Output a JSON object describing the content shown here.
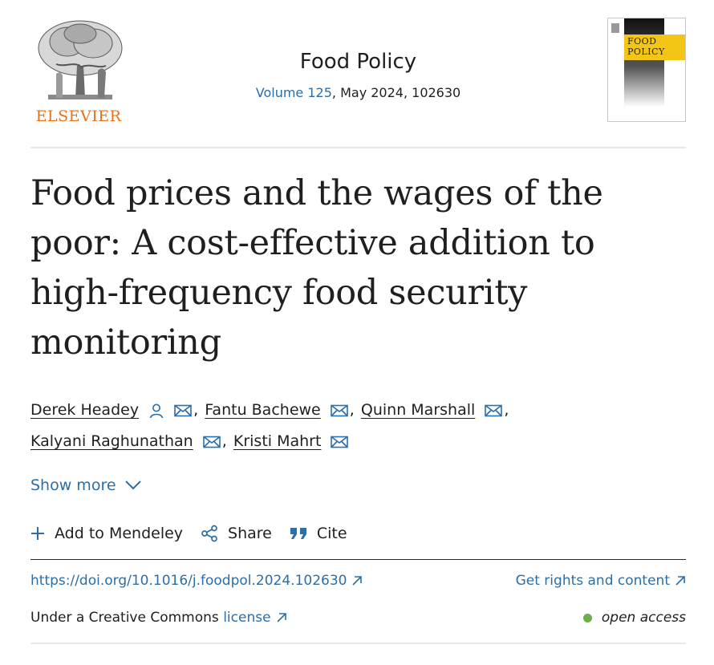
{
  "header": {
    "publisher": "ELSEVIER",
    "journal_title": "Food Policy",
    "volume_link": "Volume 125",
    "issue_info": ", May 2024, 102630",
    "cover_text": "FOOD POLICY"
  },
  "article": {
    "title": "Food prices and the wages of the poor: A cost-effective addition to high-frequency food security monitoring"
  },
  "authors": [
    {
      "name": "Derek Headey",
      "has_person_icon": true
    },
    {
      "name": "Fantu Bachewe"
    },
    {
      "name": "Quinn Marshall"
    },
    {
      "name": "Kalyani Raghunathan"
    },
    {
      "name": "Kristi Mahrt"
    }
  ],
  "show_more": "Show more",
  "actions": {
    "mendeley": "Add to Mendeley",
    "share": "Share",
    "cite": "Cite"
  },
  "links": {
    "doi": "https://doi.org/10.1016/j.foodpol.2024.102630",
    "rights": "Get rights and content",
    "license_prefix": "Under a Creative Commons ",
    "license_link": "license",
    "open_access": "open access"
  },
  "colors": {
    "link": "#2b6ea8",
    "elsevier_orange": "#e9711c",
    "open_access_dot": "#6ab04c",
    "cover_band": "#f3c516"
  }
}
